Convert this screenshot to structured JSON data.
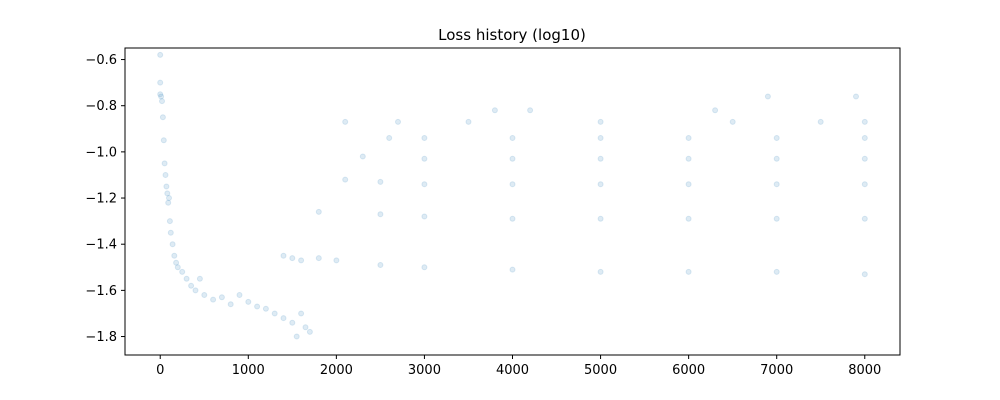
{
  "chart_data": {
    "type": "scatter",
    "title": "Loss history (log10)",
    "xlabel": "",
    "ylabel": "",
    "xlim": [
      -400,
      8400
    ],
    "ylim": [
      -1.88,
      -0.55
    ],
    "xticks": [
      0,
      1000,
      2000,
      3000,
      4000,
      5000,
      6000,
      7000,
      8000
    ],
    "yticks": [
      -1.8,
      -1.6,
      -1.4,
      -1.2,
      -1.0,
      -0.8,
      -0.6
    ],
    "grid": false,
    "legend": "none",
    "marker_color": "#1f77b4",
    "marker_alpha": 0.15,
    "series": [
      {
        "values": [
          [
            0,
            -0.58
          ],
          [
            0,
            -0.7
          ],
          [
            0,
            -0.75
          ],
          [
            10,
            -0.76
          ],
          [
            20,
            -0.78
          ],
          [
            30,
            -0.85
          ],
          [
            40,
            -0.95
          ],
          [
            50,
            -1.05
          ],
          [
            60,
            -1.1
          ],
          [
            70,
            -1.15
          ],
          [
            80,
            -1.18
          ],
          [
            90,
            -1.22
          ],
          [
            100,
            -1.2
          ],
          [
            110,
            -1.3
          ],
          [
            120,
            -1.35
          ],
          [
            140,
            -1.4
          ],
          [
            160,
            -1.45
          ],
          [
            180,
            -1.48
          ],
          [
            200,
            -1.5
          ],
          [
            250,
            -1.52
          ],
          [
            300,
            -1.55
          ],
          [
            350,
            -1.58
          ],
          [
            400,
            -1.6
          ],
          [
            450,
            -1.55
          ],
          [
            500,
            -1.62
          ],
          [
            600,
            -1.64
          ],
          [
            700,
            -1.63
          ],
          [
            800,
            -1.66
          ],
          [
            900,
            -1.62
          ],
          [
            1000,
            -1.65
          ],
          [
            1100,
            -1.67
          ],
          [
            1200,
            -1.68
          ],
          [
            1300,
            -1.7
          ],
          [
            1400,
            -1.72
          ],
          [
            1500,
            -1.74
          ],
          [
            1550,
            -1.8
          ],
          [
            1600,
            -1.7
          ],
          [
            1650,
            -1.76
          ],
          [
            1700,
            -1.78
          ],
          [
            1400,
            -1.45
          ],
          [
            1500,
            -1.46
          ],
          [
            1600,
            -1.47
          ],
          [
            1800,
            -1.46
          ],
          [
            2000,
            -1.47
          ],
          [
            2500,
            -1.49
          ],
          [
            3000,
            -1.5
          ],
          [
            4000,
            -1.51
          ],
          [
            5000,
            -1.52
          ],
          [
            6000,
            -1.52
          ],
          [
            7000,
            -1.52
          ],
          [
            8000,
            -1.53
          ],
          [
            1800,
            -1.26
          ],
          [
            2500,
            -1.27
          ],
          [
            3000,
            -1.28
          ],
          [
            4000,
            -1.29
          ],
          [
            5000,
            -1.29
          ],
          [
            6000,
            -1.29
          ],
          [
            7000,
            -1.29
          ],
          [
            8000,
            -1.29
          ],
          [
            2100,
            -1.12
          ],
          [
            2500,
            -1.13
          ],
          [
            3000,
            -1.14
          ],
          [
            4000,
            -1.14
          ],
          [
            5000,
            -1.14
          ],
          [
            6000,
            -1.14
          ],
          [
            7000,
            -1.14
          ],
          [
            8000,
            -1.14
          ],
          [
            2300,
            -1.02
          ],
          [
            3000,
            -1.03
          ],
          [
            4000,
            -1.03
          ],
          [
            5000,
            -1.03
          ],
          [
            6000,
            -1.03
          ],
          [
            7000,
            -1.03
          ],
          [
            8000,
            -1.03
          ],
          [
            2600,
            -0.94
          ],
          [
            3000,
            -0.94
          ],
          [
            4000,
            -0.94
          ],
          [
            5000,
            -0.94
          ],
          [
            6000,
            -0.94
          ],
          [
            7000,
            -0.94
          ],
          [
            8000,
            -0.94
          ],
          [
            2700,
            -0.87
          ],
          [
            3500,
            -0.87
          ],
          [
            5000,
            -0.87
          ],
          [
            6500,
            -0.87
          ],
          [
            7500,
            -0.87
          ],
          [
            8000,
            -0.87
          ],
          [
            2100,
            -0.87
          ],
          [
            3800,
            -0.82
          ],
          [
            4200,
            -0.82
          ],
          [
            6300,
            -0.82
          ],
          [
            6900,
            -0.76
          ],
          [
            7900,
            -0.76
          ]
        ]
      }
    ]
  }
}
